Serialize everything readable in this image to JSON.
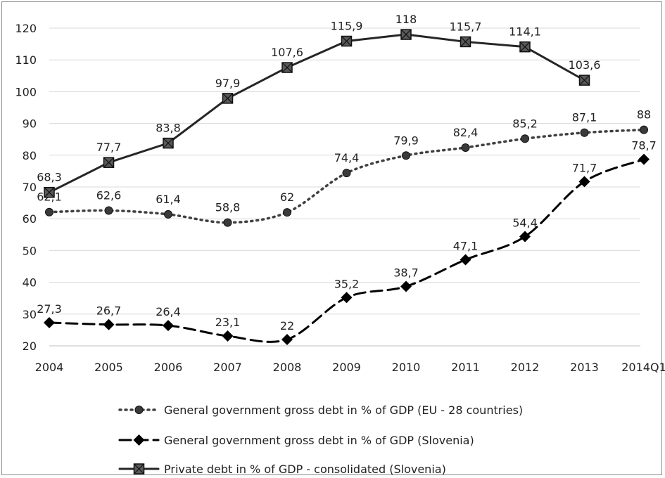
{
  "chart_data": {
    "type": "line",
    "title": "",
    "xlabel": "",
    "ylabel": "",
    "ylim": [
      20,
      120
    ],
    "yticks": [
      20,
      30,
      40,
      50,
      60,
      70,
      80,
      90,
      100,
      110,
      120
    ],
    "grid": true,
    "legend_position": "bottom",
    "categories": [
      "2004",
      "2005",
      "2006",
      "2007",
      "2008",
      "2009",
      "2010",
      "2011",
      "2012",
      "2013",
      "2014Q1"
    ],
    "series": [
      {
        "key": "eu",
        "name": "General government gross debt in % of GDP (EU - 28 countries)",
        "values": [
          62.1,
          62.6,
          61.4,
          58.8,
          62,
          74.4,
          79.9,
          82.4,
          85.2,
          87.1,
          88
        ],
        "labels": [
          "62,1",
          "62,6",
          "61,4",
          "58,8",
          "62",
          "74,4",
          "79,9",
          "82,4",
          "85,2",
          "87,1",
          "88"
        ],
        "style": "dotted",
        "marker": "circle",
        "color": "#404040"
      },
      {
        "key": "slo",
        "name": "General government gross debt in % of GDP (Slovenia)",
        "values": [
          27.3,
          26.7,
          26.4,
          23.1,
          22,
          35.2,
          38.7,
          47.1,
          54.4,
          71.7,
          78.7
        ],
        "labels": [
          "27,3",
          "26,7",
          "26,4",
          "23,1",
          "22",
          "35,2",
          "38,7",
          "47,1",
          "54,4",
          "71,7",
          "78,7"
        ],
        "style": "dashed",
        "marker": "diamond",
        "color": "#000000"
      },
      {
        "key": "priv",
        "name": "Private debt in % of GDP - consolidated (Slovenia)",
        "values": [
          68.3,
          77.7,
          83.8,
          97.9,
          107.6,
          115.9,
          118,
          115.7,
          114.1,
          103.6,
          null
        ],
        "labels": [
          "68,3",
          "77,7",
          "83,8",
          "97,9",
          "107,6",
          "115,9",
          "118",
          "115,7",
          "114,1",
          "103,6",
          null
        ],
        "style": "solid",
        "marker": "square-x",
        "color": "#262626"
      }
    ]
  }
}
